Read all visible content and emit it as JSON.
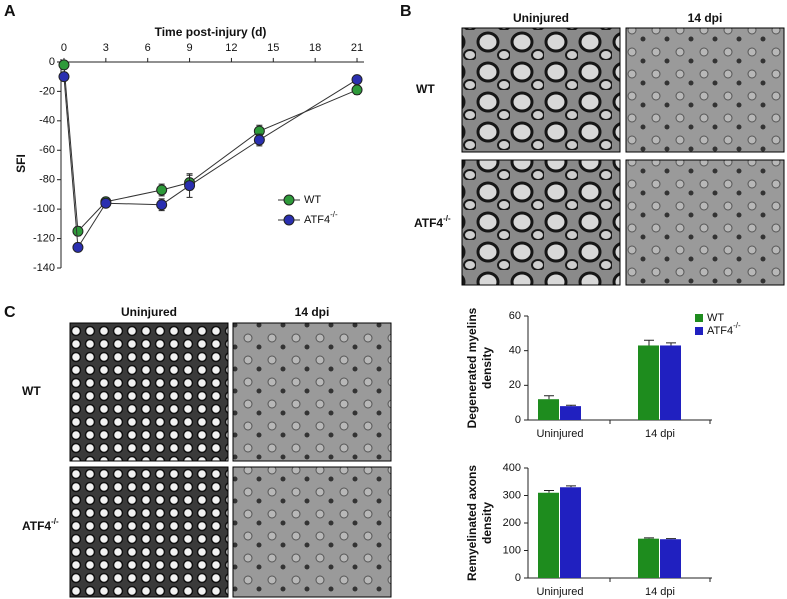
{
  "panels": {
    "a": "A",
    "b": "B",
    "c": "C"
  },
  "micrographs": {
    "b": {
      "columns": [
        "Uninjured",
        "14 dpi"
      ],
      "rows": [
        {
          "name": "WT"
        },
        {
          "name": "ATF4",
          "sup": "-/-"
        }
      ]
    },
    "c": {
      "columns": [
        "Uninjured",
        "14 dpi"
      ],
      "rows": [
        {
          "name": "WT"
        },
        {
          "name": "ATF4",
          "sup": "-/-"
        }
      ]
    }
  },
  "chart_data": [
    {
      "type": "line",
      "xlabel": "Time post-injury (d)",
      "ylabel": "SFI",
      "x": [
        0,
        1,
        3,
        7,
        9,
        14,
        21
      ],
      "xlim": [
        -0.5,
        21.5
      ],
      "xticks": [
        0,
        3,
        6,
        9,
        12,
        15,
        18,
        21
      ],
      "ylim": [
        -140,
        2
      ],
      "yticks": [
        0,
        -20,
        -40,
        -60,
        -80,
        -100,
        -120,
        -140
      ],
      "series": [
        {
          "name": "WT",
          "color": "#2e9a3a",
          "values": [
            -2,
            -115,
            -95,
            -87,
            -82,
            -47,
            -19
          ],
          "errors": [
            1,
            3,
            2,
            4,
            5,
            4,
            3
          ]
        },
        {
          "name": "ATF4",
          "sup": "-/-",
          "color": "#2a2fb0",
          "values": [
            -10,
            -126,
            -96,
            -97,
            -84,
            -53,
            -12
          ],
          "errors": [
            1,
            2,
            2,
            4,
            8,
            4,
            2
          ]
        }
      ]
    },
    {
      "type": "bar",
      "ylabel": [
        "Degenerated myelins",
        "density"
      ],
      "categories": [
        "Uninjured",
        "14 dpi"
      ],
      "ylim": [
        0,
        60
      ],
      "yticks": [
        0,
        20,
        40,
        60
      ],
      "series": [
        {
          "name": "WT",
          "color": "#1e8c1e",
          "values": [
            12,
            43
          ],
          "errors": [
            2,
            3
          ]
        },
        {
          "name": "ATF4",
          "sup": "-/-",
          "color": "#2020c0",
          "values": [
            8,
            43
          ],
          "errors": [
            0.5,
            1.5
          ]
        }
      ]
    },
    {
      "type": "bar",
      "ylabel": [
        "Remyelinated axons",
        "density"
      ],
      "categories": [
        "Uninjured",
        "14 dpi"
      ],
      "ylim": [
        0,
        400
      ],
      "yticks": [
        0,
        100,
        200,
        300,
        400
      ],
      "series": [
        {
          "name": "WT",
          "color": "#1e8c1e",
          "values": [
            310,
            143
          ],
          "errors": [
            8,
            3
          ]
        },
        {
          "name": "ATF4",
          "sup": "-/-",
          "color": "#2020c0",
          "values": [
            330,
            141
          ],
          "errors": [
            5,
            2
          ]
        }
      ]
    }
  ]
}
